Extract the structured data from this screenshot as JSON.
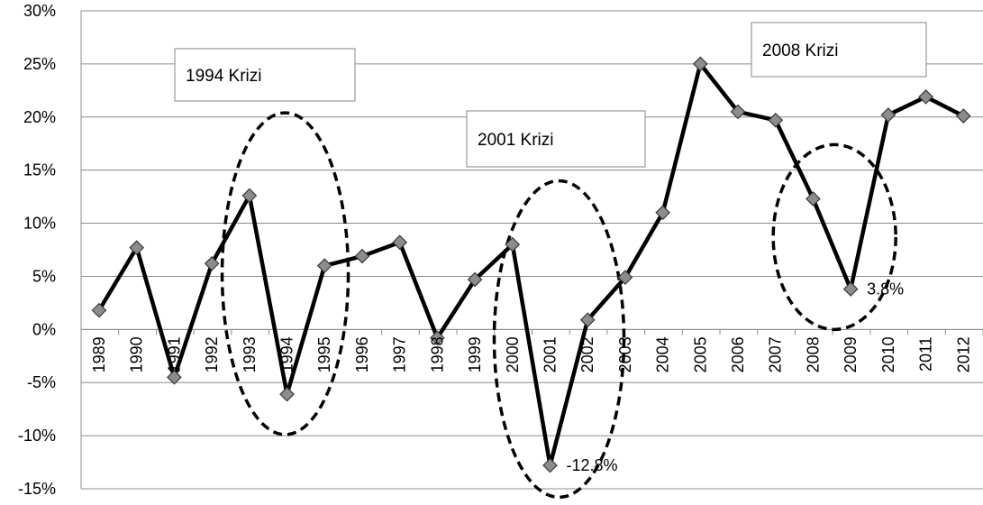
{
  "chart_data": {
    "type": "line",
    "title": "",
    "xlabel": "",
    "ylabel": "",
    "ylim": [
      -15,
      30
    ],
    "y_ticks": [
      "30%",
      "25%",
      "20%",
      "15%",
      "10%",
      "5%",
      "0%",
      "-5%",
      "-10%",
      "-15%"
    ],
    "y_tick_values": [
      30,
      25,
      20,
      15,
      10,
      5,
      0,
      -5,
      -10,
      -15
    ],
    "grid": true,
    "legend": "none",
    "categories": [
      "1989",
      "1990",
      "1991",
      "1992",
      "1993",
      "1994",
      "1995",
      "1996",
      "1997",
      "1998",
      "1999",
      "2000",
      "2001",
      "2002",
      "2003",
      "2004",
      "2005",
      "2006",
      "2007",
      "2008",
      "2009",
      "2010",
      "2011",
      "2012"
    ],
    "series": [
      {
        "values": [
          1.8,
          7.7,
          -4.5,
          6.2,
          12.6,
          -6.1,
          6.0,
          6.9,
          8.2,
          -0.8,
          4.7,
          8.0,
          -12.8,
          0.9,
          4.9,
          11.0,
          25.0,
          20.5,
          19.7,
          12.3,
          3.8,
          20.2,
          21.9,
          20.1
        ],
        "color": "#000000",
        "marker_color": "#8c8c8c"
      }
    ],
    "data_labels": [
      {
        "category": "2001",
        "text": "-12.8%"
      },
      {
        "category": "2009",
        "text": "3.8%"
      }
    ],
    "annotations": [
      {
        "text": "1994 Krizi",
        "ellipse_category": "1994"
      },
      {
        "text": "2001 Krizi",
        "ellipse_category": "2001"
      },
      {
        "text": "2008 Krizi",
        "ellipse_category": "2009"
      }
    ]
  }
}
